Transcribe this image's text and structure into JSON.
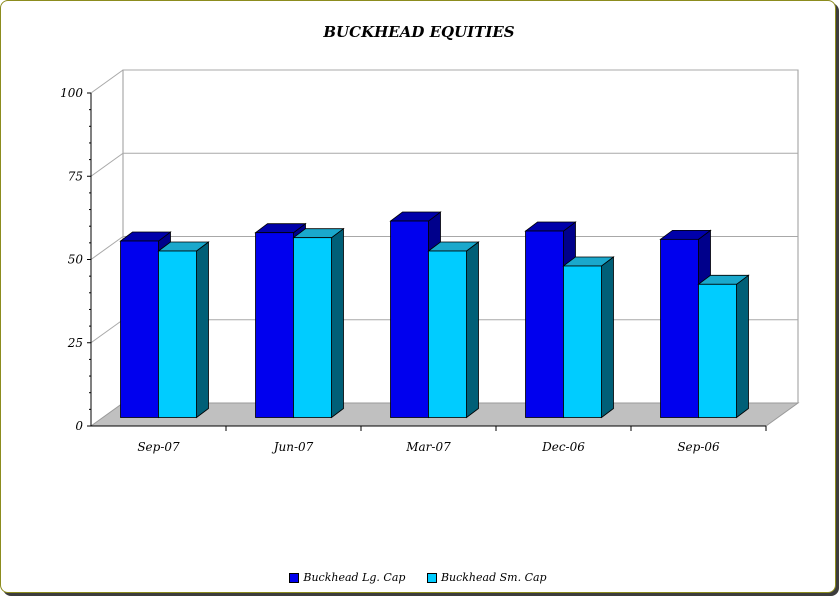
{
  "chart_data": {
    "type": "bar",
    "title": "BUCKHEAD EQUITIES",
    "categories": [
      "Sep-07",
      "Jun-07",
      "Mar-07",
      "Dec-06",
      "Sep-06"
    ],
    "series": [
      {
        "name": "Buckhead Lg. Cap",
        "values": [
          53,
          55.5,
          59,
          56,
          53.5
        ],
        "color": "#0000ee",
        "side_color": "#00008b",
        "top_color": "#0000aa"
      },
      {
        "name": "Buckhead Sm. Cap",
        "values": [
          50,
          54,
          50,
          45.5,
          40
        ],
        "color": "#00ccff",
        "side_color": "#005f77",
        "top_color": "#1aa8cc"
      }
    ],
    "ylim": [
      0,
      100
    ],
    "yticks": [
      "0",
      "25",
      "50",
      "75",
      "100"
    ],
    "grid": true,
    "legend_position": "bottom",
    "floor_color": "#c0c0c0"
  }
}
